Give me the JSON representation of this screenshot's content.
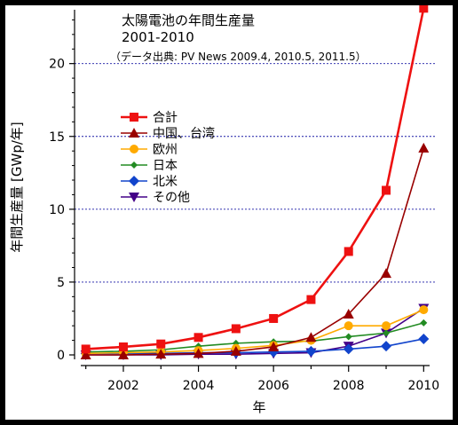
{
  "chart_data": {
    "type": "line",
    "title": "太陽電池の年間生産量",
    "subtitle": "2001-2010",
    "source": "（データ出典: PV News 2009.4, 2010.5, 2011.5）",
    "xlabel": "年",
    "ylabel": "年間生産量 [GWp/年]",
    "xlim": [
      2000.7,
      2010.3
    ],
    "ylim": [
      0,
      24
    ],
    "x_ticks": [
      2002,
      2004,
      2006,
      2008,
      2010
    ],
    "y_ticks": [
      0,
      5,
      10,
      15,
      20
    ],
    "grid": "horizontal dotted",
    "legend_placement": "upper-left",
    "x": [
      2001,
      2002,
      2003,
      2004,
      2005,
      2006,
      2007,
      2008,
      2009,
      2010
    ],
    "series": [
      {
        "name": "合計",
        "color": "#ee1111",
        "marker": "square",
        "values": [
          0.4,
          0.55,
          0.75,
          1.2,
          1.8,
          2.5,
          3.8,
          7.1,
          11.3,
          23.8
        ]
      },
      {
        "name": "中国、台湾",
        "color": "#990000",
        "marker": "triangle-up",
        "values": [
          0.0,
          0.0,
          0.05,
          0.1,
          0.25,
          0.55,
          1.2,
          2.8,
          5.6,
          14.2
        ]
      },
      {
        "name": "欧州",
        "color": "#ffaa00",
        "marker": "circle",
        "values": [
          0.1,
          0.15,
          0.2,
          0.3,
          0.45,
          0.65,
          1.0,
          2.0,
          2.0,
          3.1
        ]
      },
      {
        "name": "日本",
        "color": "#228b22",
        "marker": "diamond-small",
        "values": [
          0.2,
          0.25,
          0.35,
          0.6,
          0.8,
          0.9,
          0.95,
          1.25,
          1.5,
          2.2
        ]
      },
      {
        "name": "北米",
        "color": "#1144cc",
        "marker": "diamond",
        "values": [
          0.1,
          0.1,
          0.1,
          0.15,
          0.15,
          0.2,
          0.25,
          0.4,
          0.6,
          1.1
        ]
      },
      {
        "name": "その他",
        "color": "#440088",
        "marker": "triangle-down",
        "values": [
          0.0,
          0.0,
          0.0,
          0.05,
          0.05,
          0.1,
          0.15,
          0.6,
          1.5,
          3.2
        ]
      }
    ]
  }
}
